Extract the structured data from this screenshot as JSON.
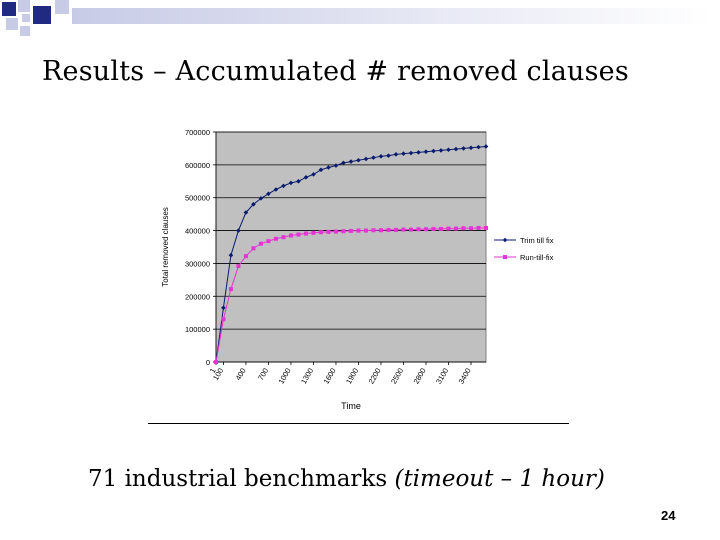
{
  "slide": {
    "title": "Results – Accumulated # removed clauses",
    "subtitle_plain": "71 industrial benchmarks ",
    "subtitle_italic": "(timeout – 1 hour)",
    "page_number": "24"
  },
  "colors": {
    "deco_dark": "#1f2a80",
    "deco_light": "#c7cbe6",
    "plot_bg": "#c0c0c0",
    "series_trim": "#0a1a6e",
    "series_run": "#e633d6"
  },
  "chart_data": {
    "type": "line",
    "xlabel": "Time",
    "ylabel": "Total removed clauses",
    "ylim": [
      0,
      700000
    ],
    "yticks": [
      0,
      100000,
      200000,
      300000,
      400000,
      500000,
      600000,
      700000
    ],
    "ytick_labels": [
      "0",
      "100000",
      "200000",
      "300000",
      "400000",
      "500000",
      "600000",
      "700000"
    ],
    "xtick_labels": [
      "1",
      "100",
      "400",
      "700",
      "1000",
      "1300",
      "1600",
      "1900",
      "2200",
      "2500",
      "2800",
      "3100",
      "3400"
    ],
    "xtick_positions": [
      1,
      100,
      400,
      700,
      1000,
      1300,
      1600,
      1900,
      2200,
      2500,
      2800,
      3100,
      3400
    ],
    "xlim": [
      1,
      3600
    ],
    "grid": "horizontal",
    "legend_position": "right",
    "x": [
      1,
      100,
      200,
      300,
      400,
      500,
      600,
      700,
      800,
      900,
      1000,
      1100,
      1200,
      1300,
      1400,
      1500,
      1600,
      1700,
      1800,
      1900,
      2000,
      2100,
      2200,
      2300,
      2400,
      2500,
      2600,
      2700,
      2800,
      2900,
      3000,
      3100,
      3200,
      3300,
      3400,
      3500,
      3600
    ],
    "series": [
      {
        "name": "Trim till fix",
        "marker": "diamond",
        "values": [
          0,
          165000,
          325000,
          400000,
          455000,
          480000,
          498000,
          512000,
          525000,
          536000,
          545000,
          550000,
          562000,
          571000,
          585000,
          592000,
          598000,
          606000,
          610000,
          614000,
          618000,
          622000,
          626000,
          628000,
          632000,
          634000,
          636000,
          638000,
          640000,
          642000,
          644000,
          646000,
          648000,
          650000,
          652000,
          654000,
          656000
        ]
      },
      {
        "name": "Run-till-fix",
        "marker": "square",
        "values": [
          0,
          130000,
          222000,
          292000,
          322000,
          346000,
          360000,
          368000,
          375000,
          380000,
          385000,
          388000,
          391000,
          393000,
          395000,
          396000,
          397000,
          398000,
          399000,
          400000,
          400000,
          401000,
          401000,
          402000,
          402000,
          403000,
          403000,
          404000,
          404000,
          405000,
          405000,
          406000,
          406000,
          407000,
          407000,
          408000,
          408000
        ]
      }
    ]
  }
}
